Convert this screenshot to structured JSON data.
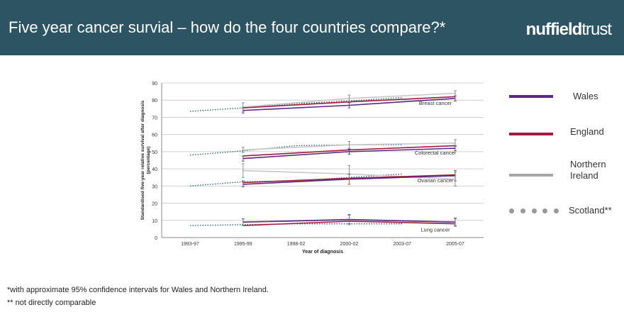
{
  "header": {
    "title": "Five year cancer survial – how do the four countries compare?*",
    "logo_bold": "nuffield",
    "logo_light": "trust",
    "background_color": "#2c5463"
  },
  "legend": {
    "items": [
      {
        "label": "Wales",
        "color": "#5a2a82",
        "style": "solid"
      },
      {
        "label": "England",
        "color": "#a01c3c",
        "style": "solid"
      },
      {
        "label": "Northern Ireland",
        "color": "#a8a8a8",
        "style": "solid"
      },
      {
        "label": "Scotland**",
        "color": "#999999",
        "style": "dotted"
      }
    ]
  },
  "footnotes": {
    "note1": "*with approximate 95% confidence intervals for Wales and Northern Ireland.",
    "note2": "** not directly comparable"
  },
  "chart_data": {
    "type": "line",
    "xlabel": "Year of diagnosis",
    "ylabel": "Standardised five-year relative survival after diagnosis (percentage)",
    "categories": [
      "1993-97",
      "1995-99",
      "1998-02",
      "2000-02",
      "2003-07",
      "2005-07"
    ],
    "ylim": [
      0,
      90
    ],
    "yticks": [
      0,
      10,
      20,
      30,
      40,
      50,
      60,
      70,
      80,
      90
    ],
    "grid": true,
    "colors": {
      "Wales": "#5a2a82",
      "England": "#a01c3c",
      "Northern Ireland": "#c8c8c8",
      "Scotland": "#2e6a78"
    },
    "groups": [
      {
        "label": "Breast cancer",
        "wales": [
          [
            1,
            74
          ],
          [
            3,
            77
          ],
          [
            5,
            81
          ]
        ],
        "england": [
          [
            1,
            75.5
          ],
          [
            3,
            79
          ],
          [
            5,
            82
          ]
        ],
        "ni": [
          [
            1,
            76
          ],
          [
            3,
            81
          ],
          [
            5,
            84
          ]
        ],
        "scotland": [
          [
            0,
            73.5
          ],
          [
            1,
            75.5
          ],
          [
            2,
            78
          ],
          [
            3,
            79.5
          ],
          [
            4,
            81.5
          ]
        ],
        "ci_wales": [
          [
            1,
            72.5,
            75.5
          ],
          [
            3,
            75.5,
            78.5
          ],
          [
            5,
            79.5,
            82.5
          ]
        ],
        "ci_ni": [
          [
            1,
            73.5,
            78.5
          ],
          [
            3,
            79,
            83
          ],
          [
            5,
            82.5,
            85.5
          ]
        ]
      },
      {
        "label": "Colorectal cancer",
        "wales": [
          [
            1,
            46
          ],
          [
            3,
            50
          ],
          [
            5,
            52
          ]
        ],
        "england": [
          [
            1,
            47.5
          ],
          [
            3,
            51
          ],
          [
            5,
            53.5
          ]
        ],
        "ni": [
          [
            1,
            51
          ],
          [
            3,
            54
          ],
          [
            5,
            55
          ]
        ],
        "scotland": [
          [
            0,
            48
          ],
          [
            1,
            50.5
          ],
          [
            2,
            53.5
          ],
          [
            3,
            54
          ],
          [
            4,
            54
          ]
        ],
        "ci_wales": [
          [
            1,
            44.5,
            47.5
          ],
          [
            3,
            48.5,
            51.5
          ],
          [
            5,
            50.5,
            53.5
          ]
        ],
        "ci_ni": [
          [
            1,
            49.5,
            52.5
          ],
          [
            3,
            52,
            56
          ],
          [
            5,
            53,
            57
          ]
        ]
      },
      {
        "label": "Ovarian cancer",
        "wales": [
          [
            1,
            31
          ],
          [
            3,
            34
          ],
          [
            5,
            36
          ]
        ],
        "england": [
          [
            1,
            32
          ],
          [
            3,
            34.5
          ],
          [
            5,
            36.5
          ]
        ],
        "ni": [
          [
            1,
            39
          ],
          [
            3,
            37
          ],
          [
            5,
            34
          ]
        ],
        "scotland": [
          [
            0,
            30
          ],
          [
            1,
            32.5
          ],
          [
            2,
            33
          ],
          [
            3,
            35
          ],
          [
            4,
            37
          ]
        ],
        "ci_wales": [
          [
            1,
            29.5,
            33
          ],
          [
            3,
            31,
            37
          ],
          [
            5,
            33,
            39
          ]
        ],
        "ci_ni": [
          [
            1,
            35,
            43
          ],
          [
            3,
            31,
            42
          ],
          [
            5,
            30,
            38
          ]
        ]
      },
      {
        "label": "Lung cancer",
        "wales": [
          [
            1,
            9
          ],
          [
            3,
            10.5
          ],
          [
            5,
            9
          ]
        ],
        "england": [
          [
            1,
            7
          ],
          [
            3,
            9.5
          ],
          [
            5,
            8
          ]
        ],
        "ni": [
          [
            1,
            9
          ],
          [
            3,
            10
          ],
          [
            5,
            9
          ]
        ],
        "scotland": [
          [
            0,
            7
          ],
          [
            1,
            7.5
          ],
          [
            2,
            8
          ],
          [
            3,
            8
          ],
          [
            4,
            8
          ]
        ],
        "ci_wales": [
          [
            1,
            7,
            11
          ],
          [
            3,
            8,
            13.5
          ],
          [
            5,
            7,
            11
          ]
        ],
        "ci_ni": [
          [
            1,
            7,
            11
          ],
          [
            3,
            7.5,
            13
          ],
          [
            5,
            6.5,
            11.5
          ]
        ]
      }
    ]
  }
}
